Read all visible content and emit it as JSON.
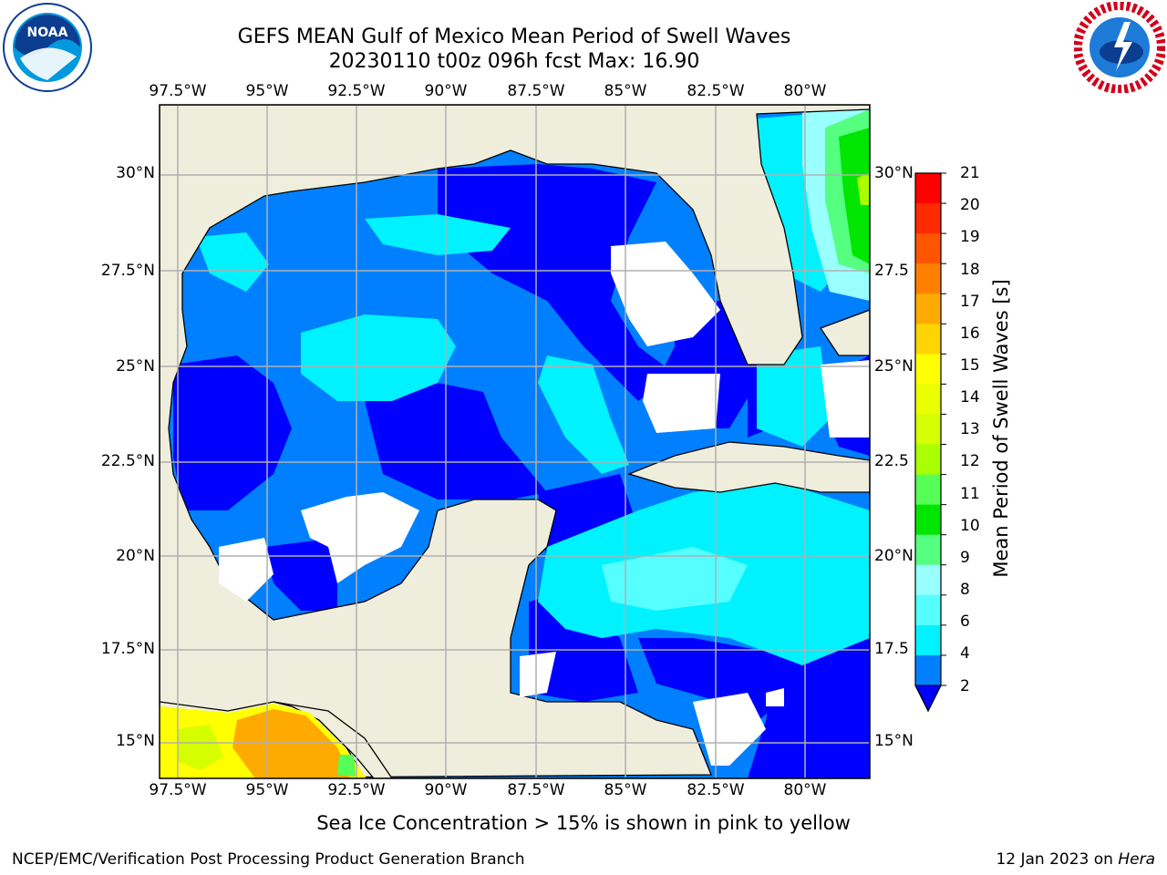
{
  "title": {
    "line1": "GEFS MEAN Gulf of Mexico Mean Period of Swell Waves",
    "line2": "20230110 t00z 096h fcst   Max: 16.90"
  },
  "logos": {
    "left": {
      "name": "NOAA",
      "icon": "noaa-logo-icon"
    },
    "right": {
      "name": "NATIONAL WEATHER SERVICE",
      "icon": "nws-logo-icon"
    }
  },
  "axes": {
    "lon_labels": [
      "97.5°W",
      "95°W",
      "92.5°W",
      "90°W",
      "87.5°W",
      "85°W",
      "82.5°W",
      "80°W"
    ],
    "lat_labels_left": [
      "30°N",
      "27.5°N",
      "25°N",
      "22.5°N",
      "20°N",
      "17.5°N",
      "15°N"
    ],
    "lat_labels_right": [
      "30°N",
      "27.5",
      "25°N",
      "22.5",
      "20°N",
      "17.5",
      "15°N"
    ]
  },
  "colorbar": {
    "label": "Mean Period of Swell Waves [s]",
    "ticks": [
      "21",
      "20",
      "19",
      "18",
      "17",
      "16",
      "15",
      "14",
      "13",
      "12",
      "11",
      "10",
      "9",
      "8",
      "6",
      "4",
      "2"
    ],
    "colors": [
      "#ff0000",
      "#ff2a00",
      "#ff5500",
      "#ff8000",
      "#ffaa00",
      "#ffd400",
      "#ffff00",
      "#eaff00",
      "#d5ff00",
      "#aaff00",
      "#55ff55",
      "#00e600",
      "#55ff80",
      "#99ffff",
      "#55ffff",
      "#00f2ff",
      "#0080ff",
      "#0000ff"
    ]
  },
  "footer": {
    "note": "Sea Ice Concentration > 15% is shown in pink to yellow",
    "credit": "NCEP/EMC/Verification Post Processing Product Generation Branch",
    "date": "12 Jan 2023 on",
    "host": "Hera"
  },
  "colors": {
    "land": "#efeddc",
    "deep_blue": "#0000ff",
    "mid_blue": "#0080ff",
    "cyan": "#00ffff",
    "light_cyan": "#55ffff",
    "grid": "#b0b0b0"
  }
}
